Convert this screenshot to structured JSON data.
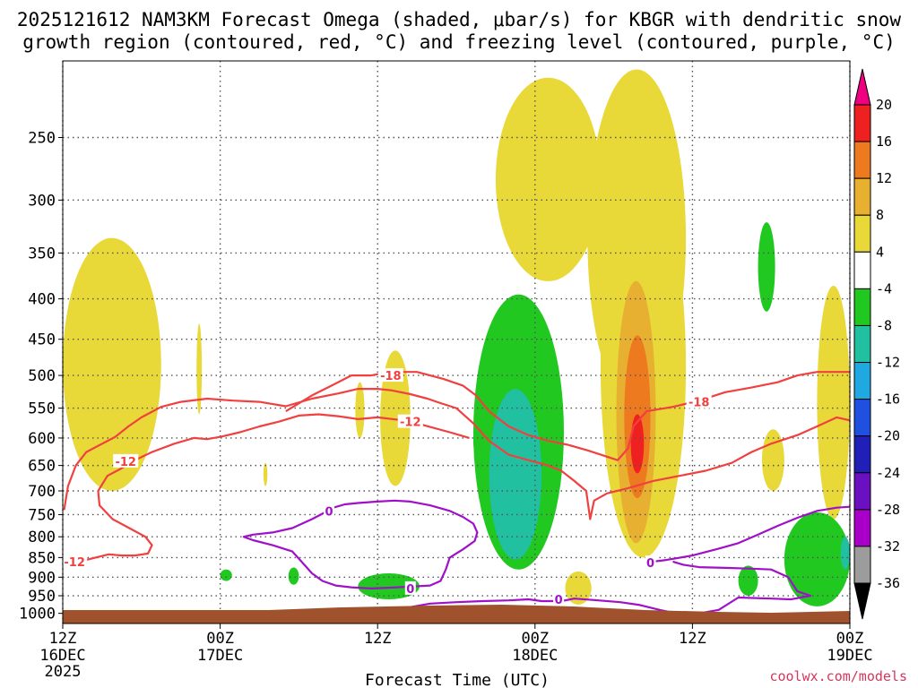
{
  "chart_data": {
    "type": "heatmap",
    "title_line1": "2025121612 NAM3KM Forecast Omega (shaded, μbar/s) for KBGR with dendritic snow",
    "title_line2": "growth region (contoured, red, °C) and freezing level (contoured, purple, °C)",
    "xlabel": "Forecast Time (UTC)",
    "ylabel": "",
    "watermark": "coolwx.com/models",
    "x_range_hours": [
      0,
      60
    ],
    "y_range_hpa": [
      200,
      1030
    ],
    "x_ticks": [
      {
        "hour": 0,
        "line1": "12Z",
        "line2": "16DEC",
        "line3": "2025"
      },
      {
        "hour": 12,
        "line1": "00Z",
        "line2": "17DEC",
        "line3": ""
      },
      {
        "hour": 24,
        "line1": "12Z",
        "line2": "",
        "line3": ""
      },
      {
        "hour": 36,
        "line1": "00Z",
        "line2": "18DEC",
        "line3": ""
      },
      {
        "hour": 48,
        "line1": "12Z",
        "line2": "",
        "line3": ""
      },
      {
        "hour": 60,
        "line1": "00Z",
        "line2": "19DEC",
        "line3": ""
      }
    ],
    "y_ticks": [
      250,
      300,
      350,
      400,
      450,
      500,
      550,
      600,
      650,
      700,
      750,
      800,
      850,
      900,
      950,
      1000
    ],
    "colorbar": {
      "ticks": [
        "20",
        "16",
        "12",
        "8",
        "4",
        "-4",
        "-8",
        "-12",
        "-16",
        "-20",
        "-24",
        "-28",
        "-32",
        "-36"
      ],
      "colors": [
        "#ee0080",
        "#ee2020",
        "#ee7a20",
        "#e8b030",
        "#e8d838",
        "#ffffff",
        "#20c820",
        "#20c0a0",
        "#20a8e0",
        "#2050e0",
        "#2020b8",
        "#6a10c0",
        "#a800c8",
        "#9c9c9c",
        "#000000"
      ]
    },
    "omega_regions": [
      {
        "level": "4to8",
        "color": "#e8d838",
        "hpa_top": 335,
        "hpa_bot": 700,
        "h_start": 0.0,
        "h_end": 7.5
      },
      {
        "level": "4to8",
        "color": "#e8d838",
        "hpa_top": 430,
        "hpa_bot": 560,
        "h_start": 10.2,
        "h_end": 10.6
      },
      {
        "level": "4to8",
        "color": "#e8d838",
        "hpa_top": 510,
        "hpa_bot": 600,
        "h_start": 22.3,
        "h_end": 23.0
      },
      {
        "level": "4to8",
        "color": "#e8d838",
        "hpa_top": 465,
        "hpa_bot": 690,
        "h_start": 24.2,
        "h_end": 26.5
      },
      {
        "level": "4to8",
        "color": "#e8d838",
        "hpa_top": 645,
        "hpa_bot": 690,
        "h_start": 15.3,
        "h_end": 15.6
      },
      {
        "level": "4to8",
        "color": "#e8d838",
        "hpa_top": 210,
        "hpa_bot": 380,
        "h_start": 33.0,
        "h_end": 41.0
      },
      {
        "level": "4to8",
        "color": "#e8d838",
        "hpa_top": 205,
        "hpa_bot": 550,
        "h_start": 40.0,
        "h_end": 47.5
      },
      {
        "level": "4to8",
        "color": "#e8d838",
        "hpa_top": 280,
        "hpa_bot": 850,
        "h_start": 41.0,
        "h_end": 47.5
      },
      {
        "level": "4to8",
        "color": "#e8d838",
        "hpa_top": 885,
        "hpa_bot": 975,
        "h_start": 38.3,
        "h_end": 40.3
      },
      {
        "level": "4to8",
        "color": "#e8d838",
        "hpa_top": 385,
        "hpa_bot": 760,
        "h_start": 57.5,
        "h_end": 60.0
      },
      {
        "level": "4to8",
        "color": "#e8d838",
        "hpa_top": 585,
        "hpa_bot": 700,
        "h_start": 53.3,
        "h_end": 55.0
      },
      {
        "level": "8to12",
        "color": "#e8b030",
        "hpa_top": 380,
        "hpa_bot": 815,
        "h_start": 42.2,
        "h_end": 45.2
      },
      {
        "level": "12to16",
        "color": "#ee7a20",
        "hpa_top": 445,
        "hpa_bot": 715,
        "h_start": 42.8,
        "h_end": 44.8
      },
      {
        "level": "16to20",
        "color": "#ee2020",
        "hpa_top": 560,
        "hpa_bot": 665,
        "h_start": 43.3,
        "h_end": 44.3
      },
      {
        "level": "-4to-8",
        "color": "#20c820",
        "hpa_top": 395,
        "hpa_bot": 880,
        "h_start": 31.3,
        "h_end": 38.2
      },
      {
        "level": "-4to-8",
        "color": "#20c820",
        "hpa_top": 570,
        "hpa_bot": 640,
        "h_start": 31.3,
        "h_end": 32.2
      },
      {
        "level": "-4to-8",
        "color": "#20c820",
        "hpa_top": 320,
        "hpa_bot": 415,
        "h_start": 53.0,
        "h_end": 54.3
      },
      {
        "level": "-4to-8",
        "color": "#20c820",
        "hpa_top": 890,
        "hpa_bot": 960,
        "h_start": 22.5,
        "h_end": 27.2
      },
      {
        "level": "-4to-8",
        "color": "#20c820",
        "hpa_top": 880,
        "hpa_bot": 910,
        "h_start": 12.0,
        "h_end": 12.9
      },
      {
        "level": "-4to-8",
        "color": "#20c820",
        "hpa_top": 875,
        "hpa_bot": 920,
        "h_start": 17.2,
        "h_end": 18.0
      },
      {
        "level": "-4to-8",
        "color": "#20c820",
        "hpa_top": 870,
        "hpa_bot": 950,
        "h_start": 51.5,
        "h_end": 53.0
      },
      {
        "level": "-4to-8",
        "color": "#20c820",
        "hpa_top": 745,
        "hpa_bot": 980,
        "h_start": 55.0,
        "h_end": 60.0
      },
      {
        "level": "-8to-12",
        "color": "#20c0a0",
        "hpa_top": 520,
        "hpa_bot": 855,
        "h_start": 32.5,
        "h_end": 36.5
      },
      {
        "level": "-8to-12",
        "color": "#20c0a0",
        "hpa_top": 800,
        "hpa_bot": 880,
        "h_start": 59.3,
        "h_end": 60.0
      }
    ],
    "contours": {
      "dgz_minus18": {
        "color": "#f04040",
        "label": "-18",
        "points": [
          [
            17,
            555
          ],
          [
            19,
            530
          ],
          [
            20.5,
            515
          ],
          [
            22,
            500
          ],
          [
            23.5,
            500
          ],
          [
            25,
            495
          ],
          [
            27,
            495
          ],
          [
            29,
            505
          ],
          [
            30.5,
            515
          ],
          [
            31.5,
            530
          ],
          [
            32.5,
            555
          ],
          [
            34,
            580
          ],
          [
            35.5,
            595
          ],
          [
            37,
            605
          ],
          [
            38.5,
            612
          ],
          [
            40,
            622
          ],
          [
            41.3,
            632
          ],
          [
            42.3,
            640
          ],
          [
            43.1,
            618
          ],
          [
            43.5,
            580
          ],
          [
            44.5,
            555
          ],
          [
            46.5,
            548
          ],
          [
            48.5,
            538
          ],
          [
            50.5,
            525
          ],
          [
            52.5,
            518
          ],
          [
            54.5,
            510
          ],
          [
            56,
            500
          ],
          [
            57.5,
            495
          ],
          [
            59,
            495
          ],
          [
            60,
            495
          ]
        ],
        "label_points": [
          [
            25,
            500
          ],
          [
            48.5,
            540
          ]
        ]
      },
      "dgz_minus12": {
        "color": "#f04040",
        "label": "-12",
        "points": [
          [
            0.1,
            740
          ],
          [
            0.4,
            690
          ],
          [
            1,
            650
          ],
          [
            1.8,
            625
          ],
          [
            3,
            610
          ],
          [
            4,
            598
          ],
          [
            5,
            580
          ],
          [
            6,
            565
          ],
          [
            7.5,
            548
          ],
          [
            9,
            540
          ],
          [
            11,
            535
          ],
          [
            13,
            538
          ],
          [
            15,
            540
          ],
          [
            17,
            547
          ],
          [
            19,
            535
          ],
          [
            21,
            527
          ],
          [
            22.5,
            520
          ],
          [
            24,
            520
          ],
          [
            25,
            522
          ],
          [
            26.5,
            528
          ],
          [
            27.8,
            535
          ],
          [
            28.8,
            542
          ],
          [
            30,
            550
          ],
          [
            31.3,
            575
          ],
          [
            32.5,
            605
          ],
          [
            34,
            630
          ],
          [
            35.5,
            640
          ],
          [
            37,
            650
          ],
          [
            38,
            660
          ],
          [
            39,
            680
          ],
          [
            39.9,
            700
          ],
          [
            40.2,
            760
          ],
          [
            40.5,
            720
          ],
          [
            41.5,
            705
          ],
          [
            43,
            695
          ],
          [
            45,
            680
          ],
          [
            47,
            670
          ],
          [
            49,
            660
          ],
          [
            51,
            645
          ],
          [
            52.5,
            625
          ],
          [
            54,
            610
          ],
          [
            56,
            595
          ],
          [
            57.5,
            580
          ],
          [
            59,
            565
          ],
          [
            60,
            570
          ]
        ],
        "lower_points": [
          [
            0,
            858
          ],
          [
            1.5,
            858
          ],
          [
            2.5,
            850
          ],
          [
            3.5,
            842
          ],
          [
            4.5,
            845
          ],
          [
            5.5,
            845
          ],
          [
            6.5,
            840
          ],
          [
            6.8,
            820
          ],
          [
            6.3,
            800
          ],
          [
            5.2,
            782
          ],
          [
            3.8,
            760
          ],
          [
            2.8,
            730
          ],
          [
            2.7,
            700
          ],
          [
            3.4,
            670
          ],
          [
            4.5,
            655
          ],
          [
            5.5,
            640
          ],
          [
            6.8,
            625
          ],
          [
            8.5,
            610
          ],
          [
            10,
            600
          ],
          [
            11,
            602
          ],
          [
            12,
            598
          ],
          [
            13.5,
            590
          ],
          [
            15,
            580
          ],
          [
            16.5,
            572
          ],
          [
            18,
            562
          ],
          [
            19.5,
            560
          ],
          [
            21,
            563
          ],
          [
            22.5,
            568
          ],
          [
            24,
            565
          ],
          [
            26,
            570
          ],
          [
            27.5,
            578
          ],
          [
            29.5,
            590
          ],
          [
            31,
            600
          ]
        ],
        "label_points": [
          [
            4.8,
            642
          ],
          [
            26.5,
            572
          ],
          [
            0.9,
            860
          ]
        ]
      },
      "frz_zero": {
        "color": "#a010c8",
        "label": "0",
        "points": [
          [
            20,
            740
          ],
          [
            21.5,
            728
          ],
          [
            22.5,
            725
          ],
          [
            24,
            722
          ],
          [
            25.3,
            720
          ],
          [
            26.5,
            722
          ],
          [
            28,
            730
          ],
          [
            29.5,
            742
          ],
          [
            30.5,
            755
          ],
          [
            31.3,
            770
          ],
          [
            31.6,
            790
          ],
          [
            31.4,
            810
          ],
          [
            30.5,
            830
          ],
          [
            29.5,
            850
          ],
          [
            29.2,
            880
          ],
          [
            28.8,
            910
          ],
          [
            28,
            922
          ],
          [
            26.5,
            925
          ],
          [
            25,
            928
          ],
          [
            23.5,
            930
          ],
          [
            22,
            927
          ],
          [
            20.8,
            922
          ],
          [
            19.8,
            910
          ],
          [
            19,
            890
          ],
          [
            18.2,
            860
          ],
          [
            17.5,
            835
          ],
          [
            16,
            820
          ],
          [
            14.5,
            808
          ],
          [
            13.8,
            800
          ],
          [
            14.5,
            795
          ],
          [
            16,
            790
          ],
          [
            17.5,
            780
          ],
          [
            19,
            760
          ],
          [
            20,
            745
          ]
        ],
        "points2": [
          [
            46.5,
            860
          ],
          [
            47.3,
            868
          ],
          [
            48.5,
            874
          ],
          [
            50.5,
            876
          ],
          [
            52.5,
            878
          ],
          [
            54,
            880
          ],
          [
            55.3,
            900
          ],
          [
            56,
            938
          ],
          [
            57,
            950
          ],
          [
            55.5,
            960
          ],
          [
            54,
            958
          ],
          [
            51.5,
            955
          ],
          [
            50,
            990
          ],
          [
            48.5,
            1000
          ],
          [
            47,
            1002
          ],
          [
            45.5,
            990
          ],
          [
            44,
            976
          ],
          [
            42.5,
            968
          ],
          [
            40.5,
            962
          ],
          [
            39,
            958
          ],
          [
            38,
            965
          ],
          [
            36.5,
            965
          ],
          [
            35.5,
            960
          ],
          [
            34,
            963
          ],
          [
            32,
            965
          ],
          [
            30,
            968
          ],
          [
            28,
            972
          ],
          [
            26.5,
            982
          ],
          [
            25.5,
            995
          ]
        ],
        "points3": [
          [
            44.5,
            862
          ],
          [
            46,
            856
          ],
          [
            48,
            845
          ],
          [
            50,
            828
          ],
          [
            51.5,
            815
          ],
          [
            53,
            795
          ],
          [
            54.5,
            775
          ],
          [
            56,
            757
          ],
          [
            57.5,
            742
          ],
          [
            59,
            735
          ],
          [
            60,
            733
          ]
        ],
        "label_points": [
          [
            20.3,
            742
          ],
          [
            26.5,
            930
          ],
          [
            44.8,
            863
          ],
          [
            37.8,
            960
          ]
        ]
      }
    }
  }
}
